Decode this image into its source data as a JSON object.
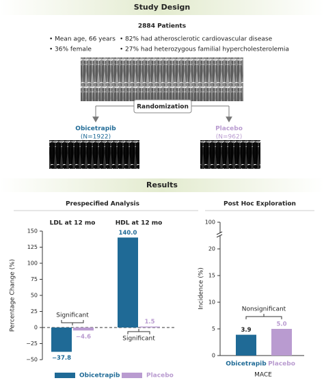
{
  "study_design": {
    "title": "Study Design",
    "patients": "2884 Patients",
    "bullets": [
      "Mean age, 66 years",
      "36% female",
      "82% had atherosclerotic cardiovascular disease",
      "27% had heterozygous familial hypercholesterolemia"
    ],
    "randomization": "Randomization",
    "arms": [
      {
        "name": "Obicetrapib",
        "n": "(N=1922)",
        "color": "#1f6a96"
      },
      {
        "name": "Placebo",
        "n": "(N=962)",
        "color": "#b99bd0"
      }
    ]
  },
  "results_title": "Results",
  "chart_data": [
    {
      "type": "bar",
      "title": "Prespecified Analysis",
      "y_label": "Percentage Change (%)",
      "categories": [
        "LDL at 12 mo",
        "HDL at 12 mo"
      ],
      "series": [
        {
          "name": "Obicetrapib",
          "color": "#1f6a96",
          "values": [
            -37.8,
            140
          ],
          "value_labels": [
            "−37.8",
            "140.0"
          ]
        },
        {
          "name": "Placebo",
          "color": "#b99bd0",
          "values": [
            -4.6,
            1.5
          ],
          "value_labels": [
            "−4.6",
            "1.5"
          ]
        }
      ],
      "ylim": [
        -50,
        150
      ],
      "yticks": [
        {
          "value": -50,
          "label": "−50"
        },
        {
          "value": -25,
          "label": "−25"
        },
        0,
        25,
        50,
        75,
        100,
        125,
        150
      ],
      "annotations": [
        "Significant",
        "Significant"
      ],
      "legend": "bottom"
    },
    {
      "type": "bar",
      "title": "Post Hoc Exploration",
      "y_label": "Incidence (%)",
      "x_label": "MACE",
      "categories": [
        "Obicetrapib",
        "Placebo"
      ],
      "values": [
        3.9,
        5.0
      ],
      "value_labels": [
        "3.9",
        "5.0"
      ],
      "colors": [
        "#1f6a96",
        "#b99bd0"
      ],
      "ylim": [
        0,
        100
      ],
      "yticks": [
        0,
        5,
        10,
        15,
        20,
        100
      ],
      "axis_break": true,
      "annotations": [
        "Nonsignificant"
      ]
    }
  ]
}
